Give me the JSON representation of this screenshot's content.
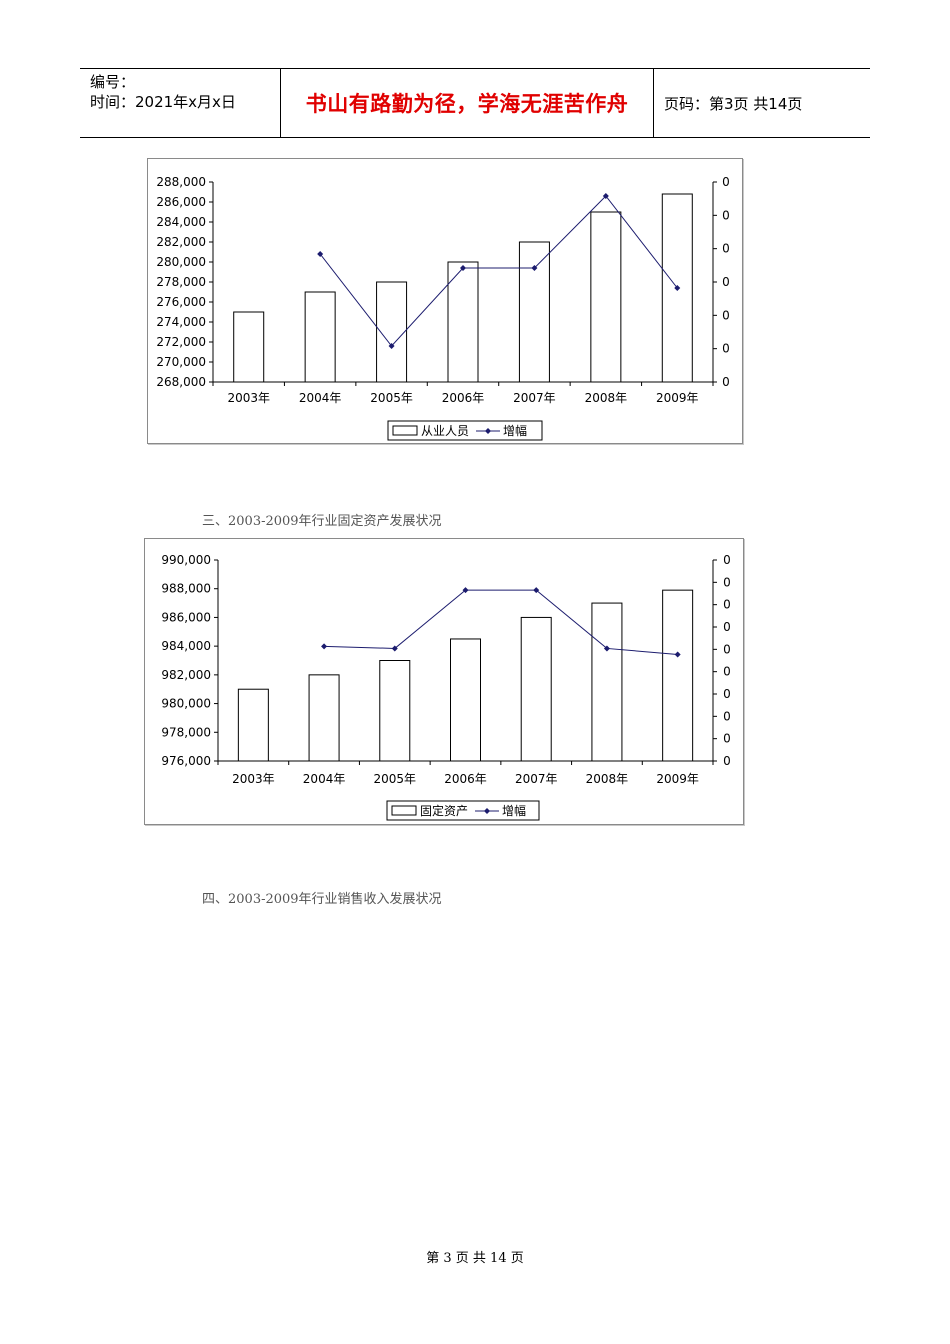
{
  "header": {
    "number_label": "编号：",
    "time_label": "时间：2021年x月x日",
    "motto": "书山有路勤为径，学海无涯苦作舟",
    "page_info": "页码：第3页  共14页"
  },
  "sections": {
    "s3_title": "三、2003-2009年行业固定资产发展状况",
    "s4_title": "四、2003-2009年行业销售收入发展状况"
  },
  "footer": {
    "text": "第 3 页 共 14 页"
  },
  "colors": {
    "header_motto": "#e00000",
    "line_series": "#1c1c6e",
    "bar_stroke": "#000000"
  },
  "chart_data": [
    {
      "type": "bar",
      "categories": [
        "2003年",
        "2004年",
        "2005年",
        "2006年",
        "2007年",
        "2008年",
        "2009年"
      ],
      "series": [
        {
          "name": "从业人员",
          "type": "bar",
          "values": [
            275000,
            277000,
            278000,
            280000,
            282000,
            285000,
            286800
          ]
        },
        {
          "name": "增幅",
          "type": "line",
          "values": [
            null,
            0.64,
            0.18,
            0.57,
            0.57,
            0.93,
            0.47
          ]
        }
      ],
      "y_ticks": [
        "288,000",
        "286,000",
        "284,000",
        "282,000",
        "280,000",
        "278,000",
        "276,000",
        "274,000",
        "272,000",
        "270,000",
        "268,000"
      ],
      "y2_ticks": [
        "0",
        "0",
        "0",
        "0",
        "0",
        "0",
        "0"
      ],
      "ylim": [
        268000,
        288000
      ],
      "y2lim": [
        0,
        1
      ],
      "legend": "bottom"
    },
    {
      "type": "bar",
      "categories": [
        "2003年",
        "2004年",
        "2005年",
        "2006年",
        "2007年",
        "2008年",
        "2009年"
      ],
      "series": [
        {
          "name": "固定资产",
          "type": "bar",
          "values": [
            981000,
            982000,
            983000,
            984500,
            986000,
            987000,
            987900
          ]
        },
        {
          "name": "增幅",
          "type": "line",
          "values": [
            null,
            0.57,
            0.56,
            0.85,
            0.85,
            0.56,
            0.53
          ]
        }
      ],
      "y_ticks": [
        "990,000",
        "988,000",
        "986,000",
        "984,000",
        "982,000",
        "980,000",
        "978,000",
        "976,000"
      ],
      "y2_ticks": [
        "0",
        "0",
        "0",
        "0",
        "0",
        "0",
        "0",
        "0",
        "0",
        "0"
      ],
      "ylim": [
        976000,
        990000
      ],
      "y2lim": [
        0,
        1
      ],
      "legend": "bottom"
    }
  ]
}
